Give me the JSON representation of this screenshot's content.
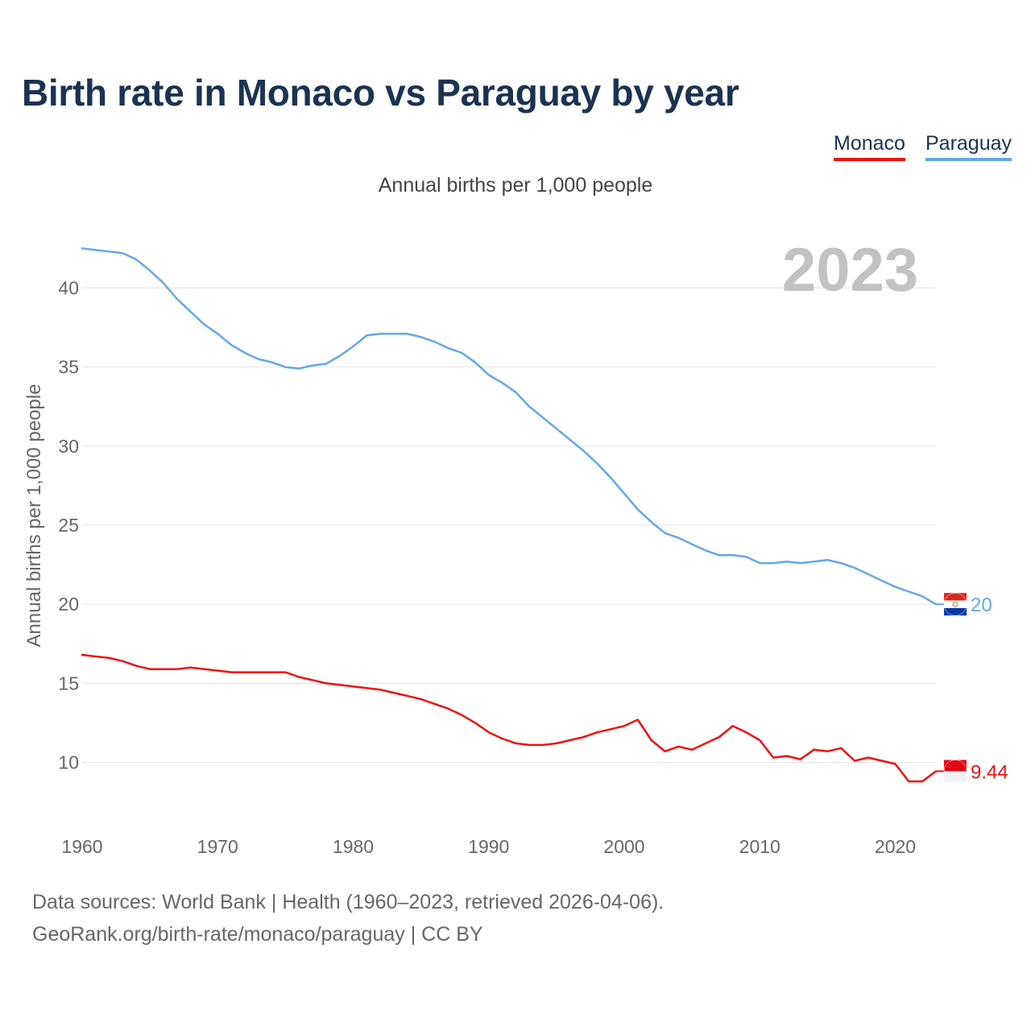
{
  "title": "Birth rate in Monaco vs Paraguay by year",
  "subtitle": "Annual births per 1,000 people",
  "legend": {
    "monaco": "Monaco",
    "paraguay": "Paraguay"
  },
  "year_watermark": "2023",
  "sources": {
    "line1": "Data sources: World Bank | Health (1960–2023, retrieved 2026-04-06).",
    "line2": "GeoRank.org/birth-rate/monaco/paraguay | CC BY"
  },
  "colors": {
    "monaco": "#ee1111",
    "paraguay": "#64a8e8",
    "title": "#1b3352",
    "grid": "#e6e6e6",
    "axis_text": "#666666"
  },
  "chart_data": {
    "type": "line",
    "title": "Birth rate in Monaco vs Paraguay by year",
    "xlabel": "",
    "ylabel": "Annual births per 1,000 people",
    "xlim": [
      1960,
      2023
    ],
    "ylim": [
      6,
      43
    ],
    "xticks": [
      1960,
      1970,
      1980,
      1990,
      2000,
      2010,
      2020
    ],
    "yticks": [
      10,
      15,
      20,
      25,
      30,
      35,
      40
    ],
    "grid": true,
    "legend_position": "top-right",
    "x": [
      1960,
      1961,
      1962,
      1963,
      1964,
      1965,
      1966,
      1967,
      1968,
      1969,
      1970,
      1971,
      1972,
      1973,
      1974,
      1975,
      1976,
      1977,
      1978,
      1979,
      1980,
      1981,
      1982,
      1983,
      1984,
      1985,
      1986,
      1987,
      1988,
      1989,
      1990,
      1991,
      1992,
      1993,
      1994,
      1995,
      1996,
      1997,
      1998,
      1999,
      2000,
      2001,
      2002,
      2003,
      2004,
      2005,
      2006,
      2007,
      2008,
      2009,
      2010,
      2011,
      2012,
      2013,
      2014,
      2015,
      2016,
      2017,
      2018,
      2019,
      2020,
      2021,
      2022,
      2023
    ],
    "series": [
      {
        "name": "Paraguay",
        "end_label": "20",
        "values": [
          42.5,
          42.4,
          42.3,
          42.2,
          41.8,
          41.1,
          40.3,
          39.3,
          38.5,
          37.7,
          37.1,
          36.4,
          35.9,
          35.5,
          35.3,
          35.0,
          34.9,
          35.1,
          35.2,
          35.7,
          36.3,
          37.0,
          37.1,
          37.1,
          37.1,
          36.9,
          36.6,
          36.2,
          35.9,
          35.3,
          34.5,
          34.0,
          33.4,
          32.5,
          31.8,
          31.1,
          30.4,
          29.7,
          28.9,
          28.0,
          27.0,
          26.0,
          25.2,
          24.5,
          24.2,
          23.8,
          23.4,
          23.1,
          23.1,
          23.0,
          22.6,
          22.6,
          22.7,
          22.6,
          22.7,
          22.8,
          22.6,
          22.3,
          21.9,
          21.5,
          21.1,
          20.8,
          20.5,
          20.0
        ]
      },
      {
        "name": "Monaco",
        "end_label": "9.44",
        "values": [
          16.8,
          16.7,
          16.6,
          16.4,
          16.1,
          15.9,
          15.9,
          15.9,
          16.0,
          15.9,
          15.8,
          15.7,
          15.7,
          15.7,
          15.7,
          15.7,
          15.4,
          15.2,
          15.0,
          14.9,
          14.8,
          14.7,
          14.6,
          14.4,
          14.2,
          14.0,
          13.7,
          13.4,
          13.0,
          12.5,
          11.9,
          11.5,
          11.2,
          11.1,
          11.1,
          11.2,
          11.4,
          11.6,
          11.9,
          12.1,
          12.3,
          12.7,
          11.4,
          10.7,
          11.0,
          10.8,
          11.2,
          11.6,
          12.3,
          11.9,
          11.4,
          10.3,
          10.4,
          10.2,
          10.8,
          10.7,
          10.9,
          10.1,
          10.3,
          10.1,
          9.9,
          8.8,
          8.8,
          9.44
        ]
      }
    ]
  }
}
